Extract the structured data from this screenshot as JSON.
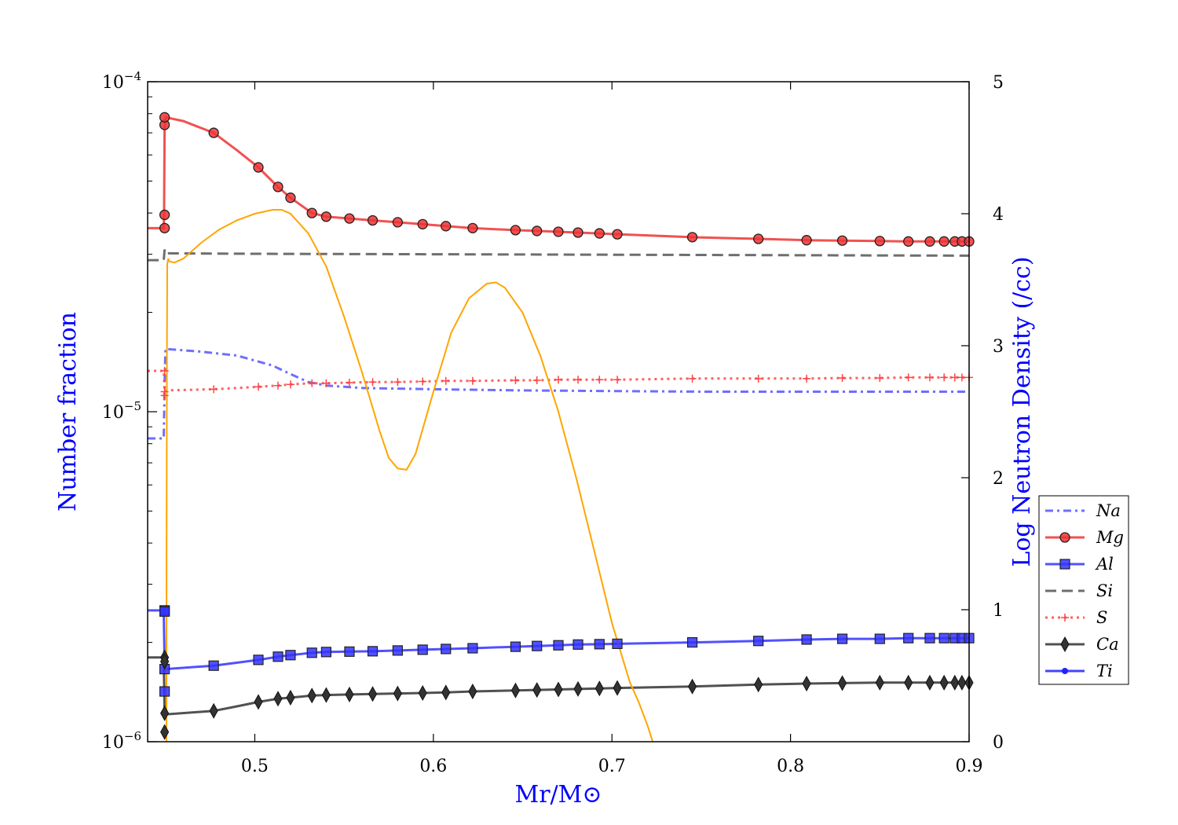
{
  "chart_data": {
    "type": "line",
    "xlabel": "Mr/M⊙",
    "ylabel_left": "Number fraction",
    "ylabel_right": "Log Neutron Density (/cc)",
    "xlim": [
      0.44,
      0.9
    ],
    "ylim_left": [
      1e-06,
      0.0001
    ],
    "ylim_right": [
      0,
      5
    ],
    "left_scale": "log",
    "grid": false,
    "legend_position": "lower-right",
    "x_ticks": [
      "0.5",
      "0.6",
      "0.7",
      "0.8",
      "0.9"
    ],
    "x_tick_values": [
      0.5,
      0.6,
      0.7,
      0.8,
      0.9
    ],
    "y_left_ticks": [
      {
        "value": 1e-06,
        "mantissa": "10",
        "exponent": "−6"
      },
      {
        "value": 1e-05,
        "mantissa": "10",
        "exponent": "−5"
      },
      {
        "value": 0.0001,
        "mantissa": "10",
        "exponent": "−4"
      }
    ],
    "y_right_ticks": [
      "0",
      "1",
      "2",
      "3",
      "4",
      "5"
    ],
    "y_right_tick_values": [
      0,
      1,
      2,
      3,
      4,
      5
    ],
    "series": [
      {
        "name": "Na",
        "axis": "left",
        "color": "#5555ff",
        "dash": "dashdot",
        "marker": "none",
        "x": [
          0.44,
          0.449,
          0.4495,
          0.45,
          0.47,
          0.49,
          0.51,
          0.52,
          0.53,
          0.54,
          0.56,
          0.6,
          0.65,
          0.7,
          0.75,
          0.8,
          0.85,
          0.9
        ],
        "y": [
          8.3e-06,
          8.3e-06,
          1.2e-05,
          1.55e-05,
          1.52e-05,
          1.48e-05,
          1.38e-05,
          1.3e-05,
          1.23e-05,
          1.2e-05,
          1.18e-05,
          1.17e-05,
          1.16e-05,
          1.155e-05,
          1.15e-05,
          1.15e-05,
          1.15e-05,
          1.15e-05
        ]
      },
      {
        "name": "Mg",
        "axis": "left",
        "color": "#ee3333",
        "dash": "solid",
        "marker": "circle",
        "x": [
          0.44,
          0.449,
          0.4492,
          0.4495,
          0.45,
          0.46,
          0.477,
          0.49,
          0.502,
          0.513,
          0.52,
          0.532,
          0.54,
          0.553,
          0.566,
          0.58,
          0.594,
          0.607,
          0.622,
          0.646,
          0.658,
          0.67,
          0.681,
          0.693,
          0.703,
          0.745,
          0.782,
          0.809,
          0.829,
          0.85,
          0.866,
          0.878,
          0.886,
          0.892,
          0.896,
          0.9
        ],
        "y": [
          3.6e-05,
          3.6e-05,
          3.9e-05,
          7.3e-05,
          7.8e-05,
          7.6e-05,
          7e-05,
          6.2e-05,
          5.5e-05,
          4.8e-05,
          4.45e-05,
          4e-05,
          3.9e-05,
          3.85e-05,
          3.8e-05,
          3.75e-05,
          3.7e-05,
          3.65e-05,
          3.6e-05,
          3.55e-05,
          3.53e-05,
          3.51e-05,
          3.49e-05,
          3.47e-05,
          3.45e-05,
          3.38e-05,
          3.34e-05,
          3.31e-05,
          3.3e-05,
          3.29e-05,
          3.28e-05,
          3.28e-05,
          3.28e-05,
          3.28e-05,
          3.28e-05,
          3.28e-05
        ],
        "markers_x": [
          0.4495,
          0.4495,
          0.4495,
          0.4495,
          0.477,
          0.502,
          0.513,
          0.52,
          0.532,
          0.54,
          0.553,
          0.566,
          0.58,
          0.594,
          0.607,
          0.622,
          0.646,
          0.658,
          0.67,
          0.681,
          0.693,
          0.703,
          0.745,
          0.782,
          0.809,
          0.829,
          0.85,
          0.866,
          0.878,
          0.886,
          0.892,
          0.896,
          0.9
        ],
        "markers_y": [
          3.6e-05,
          3.95e-05,
          7.4e-05,
          7.8e-05,
          7e-05,
          5.5e-05,
          4.8e-05,
          4.45e-05,
          4e-05,
          3.9e-05,
          3.85e-05,
          3.8e-05,
          3.75e-05,
          3.7e-05,
          3.65e-05,
          3.6e-05,
          3.55e-05,
          3.53e-05,
          3.51e-05,
          3.49e-05,
          3.47e-05,
          3.45e-05,
          3.38e-05,
          3.34e-05,
          3.31e-05,
          3.3e-05,
          3.29e-05,
          3.28e-05,
          3.28e-05,
          3.28e-05,
          3.28e-05,
          3.28e-05,
          3.28e-05
        ]
      },
      {
        "name": "Al",
        "axis": "left",
        "color": "#3333ff",
        "dash": "solid",
        "marker": "square",
        "x": [
          0.44,
          0.449,
          0.4495,
          0.45,
          0.477,
          0.502,
          0.513,
          0.52,
          0.532,
          0.54,
          0.553,
          0.566,
          0.58,
          0.594,
          0.607,
          0.622,
          0.646,
          0.658,
          0.67,
          0.681,
          0.693,
          0.703,
          0.745,
          0.782,
          0.809,
          0.829,
          0.85,
          0.866,
          0.878,
          0.886,
          0.892,
          0.896,
          0.9
        ],
        "y": [
          2.5e-06,
          2.5e-06,
          1.7e-06,
          1.66e-06,
          1.7e-06,
          1.77e-06,
          1.81e-06,
          1.83e-06,
          1.86e-06,
          1.87e-06,
          1.875e-06,
          1.88e-06,
          1.89e-06,
          1.9e-06,
          1.91e-06,
          1.92e-06,
          1.94e-06,
          1.95e-06,
          1.96e-06,
          1.97e-06,
          1.975e-06,
          1.98e-06,
          2e-06,
          2.02e-06,
          2.04e-06,
          2.05e-06,
          2.05e-06,
          2.06e-06,
          2.06e-06,
          2.06e-06,
          2.06e-06,
          2.06e-06,
          2.06e-06
        ],
        "markers_x": [
          0.4495,
          0.4495,
          0.4495,
          0.4495,
          0.477,
          0.502,
          0.513,
          0.52,
          0.532,
          0.54,
          0.553,
          0.566,
          0.58,
          0.594,
          0.607,
          0.622,
          0.646,
          0.658,
          0.67,
          0.681,
          0.693,
          0.703,
          0.745,
          0.782,
          0.809,
          0.829,
          0.85,
          0.866,
          0.878,
          0.886,
          0.892,
          0.896,
          0.9
        ],
        "markers_y": [
          2.5e-06,
          2.48e-06,
          1.66e-06,
          1.42e-06,
          1.7e-06,
          1.77e-06,
          1.81e-06,
          1.83e-06,
          1.86e-06,
          1.87e-06,
          1.875e-06,
          1.88e-06,
          1.89e-06,
          1.9e-06,
          1.91e-06,
          1.92e-06,
          1.94e-06,
          1.95e-06,
          1.96e-06,
          1.97e-06,
          1.975e-06,
          1.98e-06,
          2e-06,
          2.02e-06,
          2.04e-06,
          2.05e-06,
          2.05e-06,
          2.06e-06,
          2.06e-06,
          2.06e-06,
          2.06e-06,
          2.06e-06,
          2.06e-06
        ]
      },
      {
        "name": "Si",
        "axis": "left",
        "color": "#555555",
        "dash": "dashed",
        "marker": "none",
        "x": [
          0.44,
          0.449,
          0.4495,
          0.45,
          0.5,
          0.6,
          0.7,
          0.8,
          0.9
        ],
        "y": [
          2.88e-05,
          2.88e-05,
          3.1e-05,
          3.02e-05,
          3.01e-05,
          3e-05,
          2.99e-05,
          2.98e-05,
          2.97e-05
        ]
      },
      {
        "name": "S",
        "axis": "left",
        "color": "#ff4444",
        "dash": "dotted",
        "marker": "plus",
        "x": [
          0.44,
          0.449,
          0.4495,
          0.45,
          0.477,
          0.502,
          0.513,
          0.52,
          0.532,
          0.54,
          0.553,
          0.566,
          0.58,
          0.594,
          0.607,
          0.622,
          0.646,
          0.658,
          0.67,
          0.681,
          0.693,
          0.703,
          0.745,
          0.782,
          0.809,
          0.829,
          0.85,
          0.866,
          0.878,
          0.886,
          0.892,
          0.896,
          0.9
        ],
        "y": [
          1.33e-05,
          1.33e-05,
          1.15e-05,
          1.16e-05,
          1.17e-05,
          1.19e-05,
          1.2e-05,
          1.21e-05,
          1.22e-05,
          1.22e-05,
          1.225e-05,
          1.23e-05,
          1.23e-05,
          1.235e-05,
          1.24e-05,
          1.24e-05,
          1.245e-05,
          1.245e-05,
          1.25e-05,
          1.25e-05,
          1.25e-05,
          1.25e-05,
          1.26e-05,
          1.26e-05,
          1.26e-05,
          1.265e-05,
          1.265e-05,
          1.27e-05,
          1.27e-05,
          1.27e-05,
          1.27e-05,
          1.27e-05,
          1.27e-05
        ],
        "markers_x": [
          0.4495,
          0.4495,
          0.4495,
          0.477,
          0.502,
          0.513,
          0.52,
          0.532,
          0.54,
          0.553,
          0.566,
          0.58,
          0.594,
          0.607,
          0.622,
          0.646,
          0.658,
          0.67,
          0.681,
          0.693,
          0.703,
          0.745,
          0.782,
          0.809,
          0.829,
          0.85,
          0.866,
          0.878,
          0.886,
          0.892,
          0.896,
          0.9
        ],
        "markers_y": [
          1.33e-05,
          1.15e-05,
          1.12e-05,
          1.17e-05,
          1.19e-05,
          1.2e-05,
          1.21e-05,
          1.22e-05,
          1.22e-05,
          1.225e-05,
          1.23e-05,
          1.23e-05,
          1.235e-05,
          1.24e-05,
          1.24e-05,
          1.245e-05,
          1.245e-05,
          1.25e-05,
          1.25e-05,
          1.25e-05,
          1.25e-05,
          1.26e-05,
          1.26e-05,
          1.26e-05,
          1.265e-05,
          1.265e-05,
          1.27e-05,
          1.27e-05,
          1.27e-05,
          1.27e-05,
          1.27e-05,
          1.27e-05
        ]
      },
      {
        "name": "Ca",
        "axis": "left",
        "color": "#333333",
        "dash": "solid",
        "marker": "diamond",
        "x": [
          0.44,
          0.449,
          0.4495,
          0.45,
          0.477,
          0.49,
          0.502,
          0.513,
          0.52,
          0.532,
          0.54,
          0.553,
          0.566,
          0.58,
          0.594,
          0.607,
          0.622,
          0.646,
          0.658,
          0.67,
          0.681,
          0.693,
          0.703,
          0.745,
          0.782,
          0.809,
          0.829,
          0.85,
          0.866,
          0.878,
          0.886,
          0.892,
          0.896,
          0.9
        ],
        "y": [
          1.8e-06,
          1.8e-06,
          1.22e-06,
          1.21e-06,
          1.24e-06,
          1.28e-06,
          1.32e-06,
          1.35e-06,
          1.36e-06,
          1.38e-06,
          1.385e-06,
          1.39e-06,
          1.395e-06,
          1.4e-06,
          1.405e-06,
          1.41e-06,
          1.42e-06,
          1.43e-06,
          1.435e-06,
          1.44e-06,
          1.445e-06,
          1.45e-06,
          1.455e-06,
          1.47e-06,
          1.49e-06,
          1.5e-06,
          1.505e-06,
          1.51e-06,
          1.51e-06,
          1.51e-06,
          1.51e-06,
          1.51e-06,
          1.51e-06,
          1.51e-06
        ],
        "markers_x": [
          0.4495,
          0.4495,
          0.4495,
          0.4495,
          0.477,
          0.502,
          0.513,
          0.52,
          0.532,
          0.54,
          0.553,
          0.566,
          0.58,
          0.594,
          0.607,
          0.622,
          0.646,
          0.658,
          0.67,
          0.681,
          0.693,
          0.703,
          0.745,
          0.782,
          0.809,
          0.829,
          0.85,
          0.866,
          0.878,
          0.886,
          0.892,
          0.896,
          0.9
        ],
        "markers_y": [
          1.8e-06,
          1.75e-06,
          1.22e-06,
          1.07e-06,
          1.24e-06,
          1.32e-06,
          1.35e-06,
          1.36e-06,
          1.38e-06,
          1.385e-06,
          1.39e-06,
          1.395e-06,
          1.4e-06,
          1.405e-06,
          1.41e-06,
          1.42e-06,
          1.43e-06,
          1.435e-06,
          1.44e-06,
          1.445e-06,
          1.45e-06,
          1.455e-06,
          1.47e-06,
          1.49e-06,
          1.5e-06,
          1.505e-06,
          1.51e-06,
          1.51e-06,
          1.51e-06,
          1.51e-06,
          1.51e-06,
          1.51e-06,
          1.51e-06
        ]
      },
      {
        "name": "Ti",
        "axis": "left",
        "color": "#2222ff",
        "dash": "solid",
        "marker": "dot",
        "x": [],
        "y": []
      },
      {
        "name": "",
        "axis": "right",
        "color": "#ffa500",
        "dash": "solid",
        "marker": "none",
        "x": [
          0.4505,
          0.4506,
          0.4508,
          0.451,
          0.4515,
          0.452,
          0.455,
          0.46,
          0.47,
          0.48,
          0.49,
          0.5,
          0.51,
          0.515,
          0.52,
          0.53,
          0.54,
          0.55,
          0.56,
          0.57,
          0.575,
          0.58,
          0.585,
          0.59,
          0.6,
          0.61,
          0.62,
          0.63,
          0.635,
          0.64,
          0.65,
          0.66,
          0.67,
          0.68,
          0.69,
          0.7,
          0.71,
          0.715,
          0.72,
          0.7228
        ],
        "y": [
          0.0,
          1.5,
          3.0,
          3.62,
          3.66,
          3.64,
          3.63,
          3.66,
          3.78,
          3.88,
          3.95,
          4.0,
          4.03,
          4.03,
          4.0,
          3.85,
          3.6,
          3.22,
          2.8,
          2.35,
          2.15,
          2.07,
          2.06,
          2.18,
          2.65,
          3.1,
          3.36,
          3.47,
          3.48,
          3.44,
          3.25,
          2.92,
          2.5,
          2.0,
          1.45,
          0.9,
          0.45,
          0.3,
          0.12,
          0.0
        ]
      }
    ]
  }
}
